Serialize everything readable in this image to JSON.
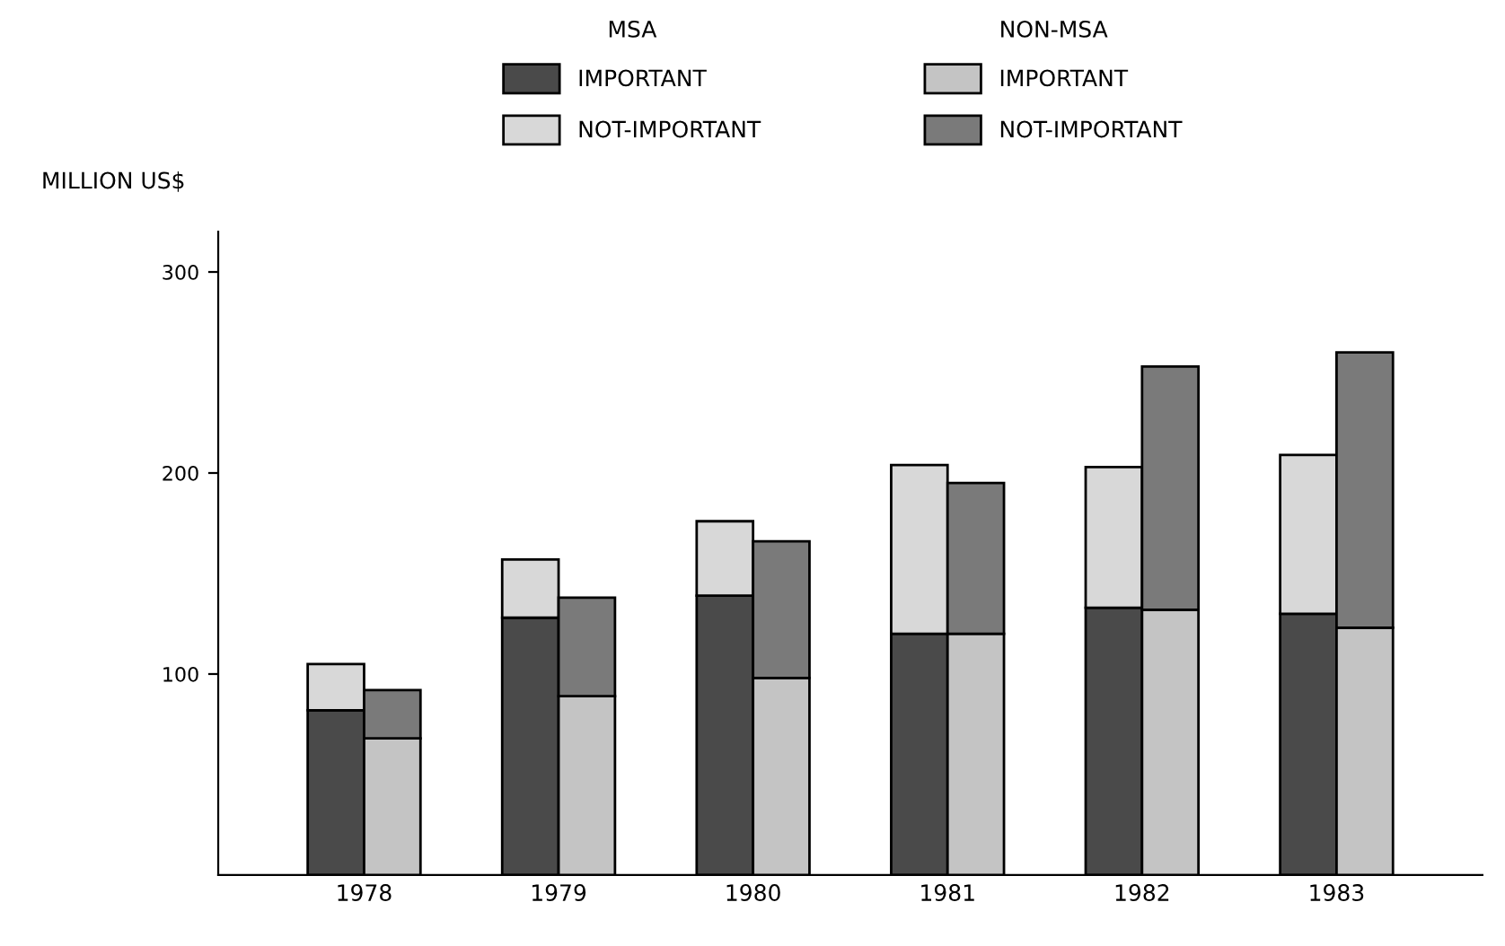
{
  "chart_data": [
    {
      "type": "bar",
      "stacked": true,
      "ylabel": "MILLION US$",
      "legend_title": "MSA",
      "legend": "top",
      "categories": [
        "1978",
        "1979",
        "1980",
        "1981",
        "1982",
        "1983"
      ],
      "series": [
        {
          "name": "IMPORTANT",
          "color": "#4a4a4a",
          "values": [
            82,
            128,
            139,
            120,
            133,
            130
          ]
        },
        {
          "name": "NOT-IMPORTANT",
          "color": "#d8d8d8",
          "values": [
            23,
            29,
            37,
            84,
            70,
            79
          ]
        }
      ],
      "ylim": [
        0,
        320
      ],
      "yticks": [
        100,
        200,
        300
      ],
      "grid": false
    },
    {
      "type": "bar",
      "stacked": true,
      "legend_title": "NON-MSA",
      "legend": "top",
      "tick_labels": false,
      "categories": [
        "1978",
        "1979",
        "1980",
        "1981",
        "1982",
        "1983"
      ],
      "series": [
        {
          "name": "IMPORTANT",
          "color": "#c4c4c4",
          "values": [
            68,
            89,
            98,
            120,
            132,
            123
          ]
        },
        {
          "name": "NOT-IMPORTANT",
          "color": "#7a7a7a",
          "values": [
            24,
            49,
            68,
            75,
            121,
            137
          ]
        }
      ],
      "ylim": [
        0,
        320
      ],
      "yticks": [
        100,
        200,
        300
      ],
      "grid": false
    }
  ]
}
